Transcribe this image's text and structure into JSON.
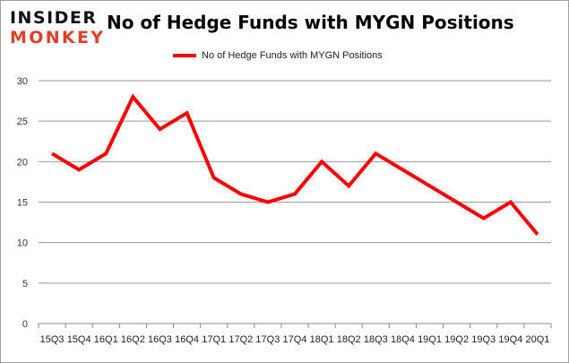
{
  "logo": {
    "line1": "INSIDER",
    "line2": "MONKEY"
  },
  "chart_data": {
    "type": "line",
    "title": "No of Hedge Funds with MYGN Positions",
    "xlabel": "",
    "ylabel": "",
    "categories": [
      "15Q3",
      "15Q4",
      "16Q1",
      "16Q2",
      "16Q3",
      "16Q4",
      "17Q1",
      "17Q2",
      "17Q3",
      "17Q4",
      "18Q1",
      "18Q2",
      "18Q3",
      "18Q4",
      "19Q1",
      "19Q2",
      "19Q3",
      "19Q4",
      "20Q1"
    ],
    "series": [
      {
        "name": "No of Hedge Funds with MYGN Positions",
        "color": "#ff0000",
        "values": [
          21,
          19,
          21,
          28,
          24,
          26,
          18,
          16,
          15,
          16,
          20,
          17,
          21,
          19,
          17,
          15,
          13,
          15,
          11
        ]
      }
    ],
    "ylim": [
      0,
      30
    ],
    "yticks": [
      0,
      5,
      10,
      15,
      20,
      25,
      30
    ],
    "grid": true,
    "legend": "top-center"
  }
}
